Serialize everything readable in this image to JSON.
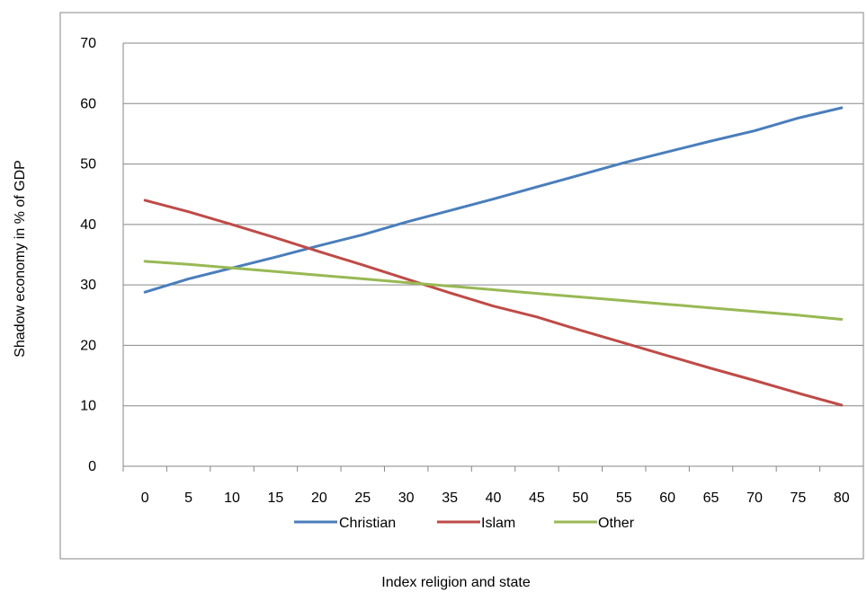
{
  "chart_data": {
    "type": "line",
    "title": "",
    "xlabel": "Index religion and state",
    "ylabel": "Shadow  economy in % of GDP",
    "x": [
      0,
      5,
      10,
      15,
      20,
      25,
      30,
      35,
      40,
      45,
      50,
      55,
      60,
      65,
      70,
      75,
      80
    ],
    "xlim": [
      0,
      80
    ],
    "ylim": [
      0,
      70
    ],
    "yticks": [
      0,
      10,
      20,
      30,
      40,
      50,
      60,
      70
    ],
    "grid": "horizontal",
    "legend_position": "bottom",
    "series": [
      {
        "name": "Christian",
        "color": "#4a7ebb",
        "values": [
          28.8,
          31.0,
          32.8,
          34.6,
          36.5,
          38.3,
          40.4,
          42.3,
          44.2,
          46.2,
          48.2,
          50.2,
          52.0,
          53.8,
          55.5,
          57.6,
          59.3
        ]
      },
      {
        "name": "Islam",
        "color": "#be4b48",
        "values": [
          44.0,
          42.1,
          40.0,
          37.8,
          35.5,
          33.3,
          31.0,
          28.7,
          26.5,
          24.7,
          22.5,
          20.4,
          18.3,
          16.2,
          14.2,
          12.1,
          10.1
        ]
      },
      {
        "name": "Other",
        "color": "#98b954",
        "values": [
          33.9,
          33.4,
          32.8,
          32.2,
          31.6,
          31.0,
          30.4,
          29.8,
          29.2,
          28.6,
          28.0,
          27.4,
          26.8,
          26.2,
          25.6,
          25.0,
          24.3
        ]
      }
    ]
  }
}
